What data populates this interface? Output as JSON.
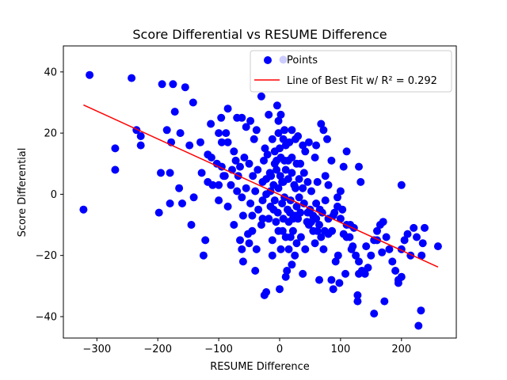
{
  "chart_data": {
    "type": "scatter",
    "title": "Score Differential vs RESUME Difference",
    "xlabel": "RESUME Difference",
    "ylabel": "Score Differential",
    "xlim": [
      -355,
      290
    ],
    "ylim": [
      -47,
      48.5
    ],
    "x_ticks": [
      -300,
      -200,
      -100,
      0,
      100,
      200
    ],
    "x_tick_labels": [
      "−300",
      "−200",
      "−100",
      "0",
      "100",
      "200"
    ],
    "y_ticks": [
      -40,
      -20,
      0,
      20,
      40
    ],
    "y_tick_labels": [
      "−40",
      "−20",
      "0",
      "20",
      "40"
    ],
    "grid": false,
    "legend_position": "upper-right",
    "colors": {
      "points": "#0000ff",
      "fit_line": "#ff0000"
    },
    "series": [
      {
        "name": "Points",
        "kind": "scatter",
        "points": [
          [
            -312,
            39
          ],
          [
            -243,
            38
          ],
          [
            -193,
            36
          ],
          [
            -175,
            36
          ],
          [
            -155,
            35
          ],
          [
            -142,
            30
          ],
          [
            -172,
            27
          ],
          [
            -235,
            21
          ],
          [
            -228,
            19
          ],
          [
            -228,
            16
          ],
          [
            -270,
            15
          ],
          [
            -270,
            8
          ],
          [
            -322,
            -5
          ],
          [
            -198,
            -6
          ],
          [
            -185,
            21
          ],
          [
            -178,
            17
          ],
          [
            -163,
            20
          ],
          [
            -148,
            16
          ],
          [
            -130,
            17
          ],
          [
            -118,
            13
          ],
          [
            -112,
            12
          ],
          [
            -103,
            10
          ],
          [
            -95,
            9
          ],
          [
            -92,
            6
          ],
          [
            -100,
            3
          ],
          [
            -110,
            3
          ],
          [
            -118,
            4
          ],
          [
            -128,
            7
          ],
          [
            -141,
            -1
          ],
          [
            -160,
            -3
          ],
          [
            -165,
            2
          ],
          [
            -180,
            -3
          ],
          [
            -195,
            7
          ],
          [
            -180,
            7
          ],
          [
            -145,
            -10
          ],
          [
            -122,
            -15
          ],
          [
            -125,
            -20
          ],
          [
            -113,
            23
          ],
          [
            -100,
            20
          ],
          [
            -96,
            25
          ],
          [
            -85,
            28
          ],
          [
            -88,
            20
          ],
          [
            -85,
            17
          ],
          [
            -95,
            17
          ],
          [
            -70,
            25
          ],
          [
            -62,
            25
          ],
          [
            -55,
            22
          ],
          [
            -48,
            24
          ],
          [
            -42,
            18
          ],
          [
            -38,
            21
          ],
          [
            -30,
            32
          ],
          [
            -24,
            15
          ],
          [
            -20,
            13
          ],
          [
            -18,
            26
          ],
          [
            -12,
            18
          ],
          [
            -8,
            14
          ],
          [
            -2,
            20
          ],
          [
            -4,
            29
          ],
          [
            2,
            26
          ],
          [
            6,
            44
          ],
          [
            8,
            21
          ],
          [
            2,
            12
          ],
          [
            10,
            16
          ],
          [
            16,
            17
          ],
          [
            20,
            21
          ],
          [
            26,
            18
          ],
          [
            30,
            19
          ],
          [
            38,
            16
          ],
          [
            42,
            14
          ],
          [
            48,
            17
          ],
          [
            28,
            10
          ],
          [
            -75,
            14
          ],
          [
            -72,
            11
          ],
          [
            -65,
            9
          ],
          [
            -58,
            12
          ],
          [
            -50,
            10
          ],
          [
            -44,
            6
          ],
          [
            -36,
            8
          ],
          [
            -28,
            4
          ],
          [
            -22,
            5
          ],
          [
            -16,
            7
          ],
          [
            -10,
            3
          ],
          [
            -5,
            8
          ],
          [
            1,
            6
          ],
          [
            6,
            4
          ],
          [
            10,
            8
          ],
          [
            14,
            5
          ],
          [
            20,
            7
          ],
          [
            24,
            3
          ],
          [
            32,
            5
          ],
          [
            38,
            2
          ],
          [
            46,
            4
          ],
          [
            -80,
            3
          ],
          [
            -70,
            1
          ],
          [
            -62,
            -1
          ],
          [
            -55,
            2
          ],
          [
            -48,
            -3
          ],
          [
            -40,
            1
          ],
          [
            -35,
            -5
          ],
          [
            -28,
            -2
          ],
          [
            -22,
            0
          ],
          [
            -15,
            -4
          ],
          [
            -8,
            -2
          ],
          [
            -3,
            -6
          ],
          [
            4,
            -3
          ],
          [
            8,
            -1
          ],
          [
            13,
            -5
          ],
          [
            18,
            -2
          ],
          [
            22,
            -8
          ],
          [
            28,
            -4
          ],
          [
            34,
            -6
          ],
          [
            40,
            -3
          ],
          [
            45,
            -9
          ],
          [
            50,
            -5
          ],
          [
            55,
            -7
          ],
          [
            60,
            -3
          ],
          [
            65,
            -10
          ],
          [
            70,
            -6
          ],
          [
            75,
            -2
          ],
          [
            80,
            -8
          ],
          [
            86,
            -12
          ],
          [
            90,
            -6
          ],
          [
            95,
            -4
          ],
          [
            100,
            -8
          ],
          [
            105,
            -13
          ],
          [
            110,
            -10
          ],
          [
            115,
            -14
          ],
          [
            120,
            -17
          ],
          [
            125,
            -20
          ],
          [
            130,
            -22
          ],
          [
            135,
            -25
          ],
          [
            140,
            -26
          ],
          [
            145,
            -24
          ],
          [
            150,
            -20
          ],
          [
            155,
            -15
          ],
          [
            160,
            -12
          ],
          [
            165,
            -10
          ],
          [
            170,
            -9
          ],
          [
            175,
            -14
          ],
          [
            180,
            -18
          ],
          [
            185,
            -22
          ],
          [
            190,
            -25
          ],
          [
            195,
            -28
          ],
          [
            200,
            -27
          ],
          [
            205,
            -15
          ],
          [
            210,
            -13
          ],
          [
            215,
            -20
          ],
          [
            220,
            -11
          ],
          [
            235,
            -16
          ],
          [
            260,
            -17
          ],
          [
            232,
            -38
          ],
          [
            228,
            -43
          ],
          [
            195,
            -29
          ],
          [
            172,
            -35
          ],
          [
            155,
            -39
          ],
          [
            128,
            -35
          ],
          [
            128,
            -33
          ],
          [
            108,
            -26
          ],
          [
            98,
            -29
          ],
          [
            88,
            -31
          ],
          [
            85,
            -28
          ],
          [
            65,
            -28
          ],
          [
            38,
            -26
          ],
          [
            20,
            -23
          ],
          [
            12,
            -25
          ],
          [
            0,
            -31
          ],
          [
            -25,
            -33
          ],
          [
            -22,
            -32
          ],
          [
            -40,
            -25
          ],
          [
            -60,
            -22
          ],
          [
            -50,
            -16
          ],
          [
            -45,
            -12
          ],
          [
            -38,
            -18
          ],
          [
            -30,
            -10
          ],
          [
            -12,
            -15
          ],
          [
            5,
            -12
          ],
          [
            15,
            -18
          ],
          [
            25,
            -20
          ],
          [
            35,
            -14
          ],
          [
            42,
            -18
          ],
          [
            58,
            -16
          ],
          [
            62,
            -12
          ],
          [
            72,
            -18
          ],
          [
            80,
            -13
          ],
          [
            92,
            -22
          ],
          [
            96,
            -20
          ],
          [
            118,
            -18
          ],
          [
            122,
            -11
          ],
          [
            130,
            -26
          ],
          [
            142,
            -17
          ],
          [
            160,
            -15
          ],
          [
            168,
            -19
          ],
          [
            200,
            -18
          ],
          [
            225,
            -14
          ],
          [
            233,
            -20
          ],
          [
            238,
            -11
          ],
          [
            200,
            3
          ],
          [
            110,
            14
          ],
          [
            72,
            21
          ],
          [
            68,
            23
          ],
          [
            78,
            18
          ],
          [
            85,
            11
          ],
          [
            60,
            16
          ],
          [
            58,
            12
          ],
          [
            75,
            6
          ],
          [
            80,
            3
          ],
          [
            62,
            4
          ],
          [
            52,
            1
          ],
          [
            100,
            1
          ],
          [
            95,
            -1
          ],
          [
            105,
            9
          ],
          [
            130,
            9
          ],
          [
            133,
            4
          ],
          [
            -60,
            -7
          ],
          [
            -45,
            -7
          ],
          [
            -75,
            -10
          ],
          [
            -65,
            -15
          ],
          [
            -62,
            -18
          ],
          [
            -52,
            -13
          ],
          [
            -18,
            -8
          ],
          [
            -12,
            -20
          ],
          [
            2,
            -18
          ],
          [
            6,
            -8
          ],
          [
            10,
            -14
          ],
          [
            17,
            -6
          ],
          [
            22,
            -12
          ],
          [
            30,
            -8
          ],
          [
            10,
            -27
          ],
          [
            25,
            -7
          ],
          [
            48,
            -10
          ],
          [
            55,
            -12
          ],
          [
            68,
            -14
          ],
          [
            4,
            4
          ],
          [
            -2,
            2
          ],
          [
            8,
            11
          ],
          [
            14,
            11
          ],
          [
            -8,
            10
          ],
          [
            -14,
            6
          ],
          [
            -26,
            11
          ],
          [
            20,
            12
          ],
          [
            26,
            2
          ],
          [
            32,
            -1
          ],
          [
            40,
            7
          ],
          [
            -2,
            -12
          ],
          [
            -6,
            -9
          ],
          [
            18,
            -14
          ],
          [
            28,
            -16
          ],
          [
            -100,
            -2
          ],
          [
            -85,
            -4
          ],
          [
            -90,
            6
          ],
          [
            -78,
            8
          ],
          [
            -68,
            6
          ],
          [
            110,
            -14
          ],
          [
            -5,
            11
          ],
          [
            0,
            15
          ],
          [
            6,
            18
          ],
          [
            -2,
            24
          ],
          [
            34,
            10
          ],
          [
            15,
            -9
          ],
          [
            -10,
            -5
          ],
          [
            -15,
            1
          ],
          [
            -28,
            -8
          ],
          [
            46,
            -6
          ],
          [
            52,
            -9
          ],
          [
            60,
            -8
          ],
          [
            66,
            -5
          ],
          [
            74,
            -12
          ],
          [
            88,
            -7
          ],
          [
            103,
            -5
          ],
          [
            116,
            -10
          ]
        ]
      },
      {
        "name": "Line of Best Fit w/ R² = 0.292",
        "kind": "line",
        "points": [
          [
            -322,
            29.2
          ],
          [
            260,
            -23.8
          ]
        ]
      }
    ]
  }
}
